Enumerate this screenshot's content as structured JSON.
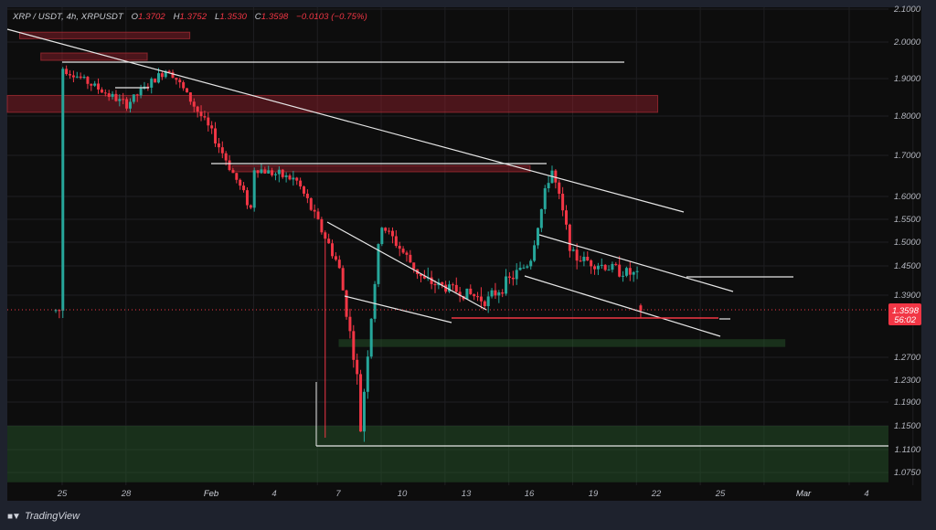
{
  "header": {
    "symbol": "XRP / USDT, 4h, XRPUSDT",
    "open_label": "O",
    "open": "1.3702",
    "high_label": "H",
    "high": "1.3752",
    "low_label": "L",
    "low": "1.3530",
    "close_label": "C",
    "close": "1.3598",
    "change": "−0.0103 (−0.75%)"
  },
  "price_tag": {
    "price": "1.3598",
    "countdown": "56:02"
  },
  "footer": {
    "brand": "TradingView"
  },
  "colors": {
    "up": "#26a69a",
    "down": "#f23645",
    "background": "#0d0d0d",
    "supply_zone": "#5a1a22",
    "demand_zone": "#1b3a1e",
    "drawing": "#e6e6e6"
  },
  "chart_data": {
    "type": "candlestick",
    "title": "XRP / USDT, 4h, XRPUSDT",
    "xlabel": "",
    "ylabel": "",
    "ylim": [
      1.05,
      2.1
    ],
    "grid": true,
    "y_ticks": [
      "2.1000",
      "2.0000",
      "1.9000",
      "1.8000",
      "1.7000",
      "1.6000",
      "1.5500",
      "1.5000",
      "1.4500",
      "1.3900",
      "1.2700",
      "1.2300",
      "1.1900",
      "1.1500",
      "1.1100",
      "1.0750"
    ],
    "x_ticks": [
      "25",
      "28",
      "Feb",
      "4",
      "7",
      "10",
      "13",
      "16",
      "19",
      "22",
      "25",
      "Mar",
      "4"
    ],
    "last_price": 1.3598,
    "ohlc_last": {
      "open": 1.3702,
      "high": 1.3752,
      "low": 1.353,
      "close": 1.3598
    },
    "key_path": [
      {
        "date": "Jan 23",
        "price": 1.93
      },
      {
        "date": "Jan 26",
        "price": 1.83
      },
      {
        "date": "Jan 28",
        "price": 1.93
      },
      {
        "date": "Jan 30",
        "price": 1.76
      },
      {
        "date": "Feb 1",
        "price": 1.56
      },
      {
        "date": "Feb 1",
        "price": 1.67
      },
      {
        "date": "Feb 3",
        "price": 1.64
      },
      {
        "date": "Feb 5",
        "price": 1.45
      },
      {
        "date": "Feb 6",
        "price": 1.2
      },
      {
        "date": "Feb 6",
        "price": 1.13
      },
      {
        "date": "Feb 7",
        "price": 1.54
      },
      {
        "date": "Feb 9",
        "price": 1.42
      },
      {
        "date": "Feb 12",
        "price": 1.38
      },
      {
        "date": "Feb 14",
        "price": 1.46
      },
      {
        "date": "Feb 15",
        "price": 1.67
      },
      {
        "date": "Feb 16",
        "price": 1.47
      },
      {
        "date": "Feb 19",
        "price": 1.43
      },
      {
        "date": "Feb 21",
        "price": 1.46
      },
      {
        "date": "Feb 23",
        "price": 1.37
      },
      {
        "date": "Feb 24",
        "price": 1.345
      },
      {
        "date": "Feb 25",
        "price": 1.3598
      }
    ],
    "zones": [
      {
        "type": "supply",
        "from": "Jan 23",
        "to": "Jan 31",
        "top": 2.03,
        "bottom": 2.01
      },
      {
        "type": "supply",
        "from": "Jan 24",
        "to": "Jan 29",
        "top": 1.97,
        "bottom": 1.95
      },
      {
        "type": "supply",
        "from": "Jan 22",
        "to": "Feb 22",
        "top": 1.855,
        "bottom": 1.81
      },
      {
        "type": "supply",
        "from": "Feb 2",
        "to": "Feb 16",
        "top": 1.675,
        "bottom": 1.66
      },
      {
        "type": "demand",
        "from": "Feb 7",
        "to": "Feb 28",
        "top": 1.305,
        "bottom": 1.29
      },
      {
        "type": "demand",
        "from": "Jan 22",
        "to": "Mar 5",
        "top": 1.15,
        "bottom": 1.06
      }
    ],
    "drawings": [
      {
        "type": "trendline",
        "desc": "Long descending resistance",
        "from": [
          "Jan 22",
          2.04
        ],
        "to": [
          "Feb 20",
          1.57
        ]
      },
      {
        "type": "hline",
        "price": 1.95,
        "from": "Jan 24",
        "to": "Feb 20"
      },
      {
        "type": "hline",
        "price": 1.68,
        "from": "Feb 1",
        "to": "Feb 16"
      },
      {
        "type": "wedge",
        "desc": "Falling wedge Feb 7–13"
      },
      {
        "type": "channel",
        "desc": "Descending channel Feb 16–25"
      },
      {
        "type": "hline",
        "price": 1.355,
        "color": "red",
        "from": "Feb 12",
        "to": "Feb 24"
      },
      {
        "type": "hline",
        "price": 1.42,
        "from": "Feb 23",
        "to": "Feb 28"
      },
      {
        "type": "hline",
        "price": 1.12,
        "from": "Feb 6",
        "to": "Mar 5"
      }
    ]
  }
}
